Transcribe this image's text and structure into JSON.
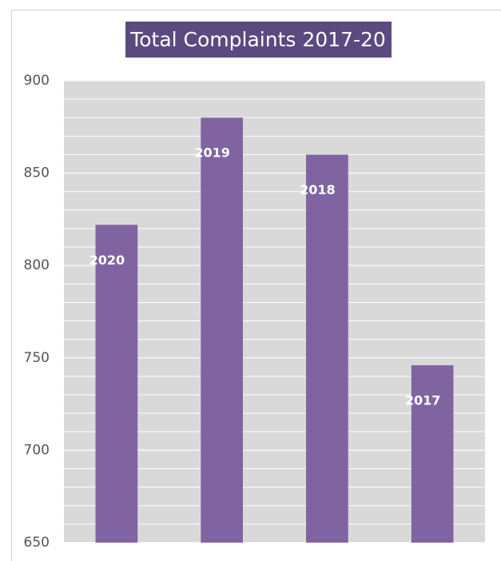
{
  "chart_data": {
    "type": "bar",
    "title": "Total Complaints 2017-20",
    "categories": [
      "2020",
      "2019",
      "2018",
      "2017"
    ],
    "values": [
      822,
      880,
      860,
      746
    ],
    "color": "#8064a2",
    "ylim": [
      650,
      900
    ],
    "yticks": [
      650,
      700,
      750,
      800,
      850,
      900
    ],
    "minor_yticks": [
      660,
      670,
      680,
      690,
      710,
      720,
      730,
      740,
      760,
      770,
      780,
      790,
      810,
      820,
      830,
      840,
      860,
      870,
      880,
      890
    ],
    "grid": true
  }
}
